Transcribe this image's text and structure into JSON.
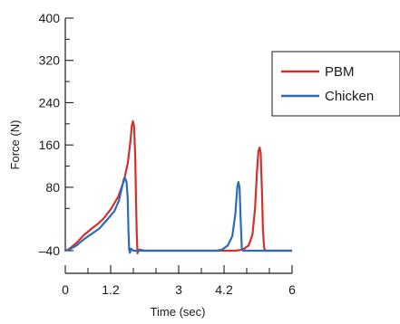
{
  "chart_data": {
    "type": "line",
    "xlabel": "Time (sec)",
    "ylabel": "Force (N)",
    "xlim": [
      0,
      6
    ],
    "ylim": [
      -40,
      400
    ],
    "x_ticks": [
      0,
      1.2,
      3,
      4.2,
      6
    ],
    "x_tick_labels": [
      "0",
      "1.2",
      "3",
      "4.2",
      "6"
    ],
    "x_minor_ticks": [
      0.6,
      1.8,
      2.4,
      3.6,
      4.8,
      5.4
    ],
    "y_ticks": [
      -40,
      80,
      160,
      240,
      320,
      400
    ],
    "y_tick_labels": [
      "–40",
      "80",
      "160",
      "240",
      "320",
      "400"
    ],
    "y_minor_ticks": [
      40,
      120,
      200,
      280,
      360
    ],
    "grid": false,
    "legend_position": "right",
    "series": [
      {
        "name": "PBM",
        "color": "#d0312d",
        "points": [
          [
            0,
            -40
          ],
          [
            0.1,
            -37
          ],
          [
            0.3,
            -25
          ],
          [
            0.5,
            -10
          ],
          [
            0.7,
            2
          ],
          [
            0.85,
            10
          ],
          [
            1.0,
            20
          ],
          [
            1.2,
            38
          ],
          [
            1.4,
            62
          ],
          [
            1.55,
            92
          ],
          [
            1.65,
            125
          ],
          [
            1.72,
            165
          ],
          [
            1.76,
            196
          ],
          [
            1.79,
            205
          ],
          [
            1.82,
            195
          ],
          [
            1.85,
            140
          ],
          [
            1.87,
            60
          ],
          [
            1.89,
            -10
          ],
          [
            1.91,
            -45
          ],
          [
            1.93,
            -39
          ],
          [
            1.96,
            -38
          ],
          [
            2.1,
            -40
          ],
          [
            4.5,
            -40
          ],
          [
            4.7,
            -38
          ],
          [
            4.85,
            -30
          ],
          [
            4.95,
            -10
          ],
          [
            5.02,
            40
          ],
          [
            5.07,
            110
          ],
          [
            5.11,
            148
          ],
          [
            5.14,
            155
          ],
          [
            5.17,
            145
          ],
          [
            5.2,
            80
          ],
          [
            5.23,
            0
          ],
          [
            5.26,
            -35
          ],
          [
            5.3,
            -40
          ],
          [
            6.0,
            -40
          ]
        ]
      },
      {
        "name": "Chicken",
        "color": "#2b6db5",
        "points": [
          [
            0,
            -40
          ],
          [
            0.1,
            -38
          ],
          [
            0.3,
            -30
          ],
          [
            0.5,
            -18
          ],
          [
            0.7,
            -8
          ],
          [
            0.9,
            2
          ],
          [
            1.1,
            18
          ],
          [
            1.3,
            35
          ],
          [
            1.42,
            55
          ],
          [
            1.5,
            80
          ],
          [
            1.55,
            96
          ],
          [
            1.58,
            98
          ],
          [
            1.62,
            90
          ],
          [
            1.65,
            60
          ],
          [
            1.67,
            0
          ],
          [
            1.69,
            -38
          ],
          [
            1.71,
            -44
          ],
          [
            1.74,
            -36
          ],
          [
            1.8,
            -40
          ],
          [
            4.0,
            -40
          ],
          [
            4.15,
            -38
          ],
          [
            4.3,
            -30
          ],
          [
            4.42,
            -12
          ],
          [
            4.5,
            30
          ],
          [
            4.55,
            80
          ],
          [
            4.58,
            90
          ],
          [
            4.61,
            80
          ],
          [
            4.64,
            20
          ],
          [
            4.67,
            -35
          ],
          [
            4.7,
            -40
          ],
          [
            6.0,
            -40
          ]
        ]
      }
    ]
  }
}
